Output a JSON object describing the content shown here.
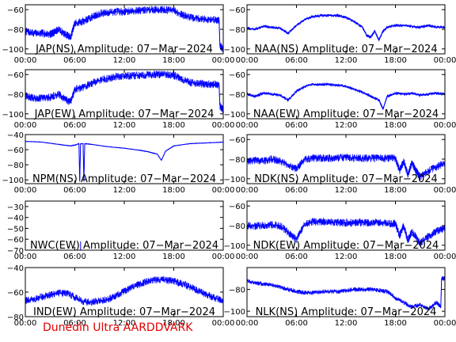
{
  "credit": "Dunedin Ultra AARDDVARK",
  "colors": {
    "series": "#0000ff",
    "axis": "#000000",
    "credit": "#e00000"
  },
  "chart_data": [
    {
      "type": "line",
      "title": "JAP(NS) Amplitude: 07−Mar−2024",
      "xticks": [
        "00:00",
        "06:00",
        "12:00",
        "18:00",
        "00:00"
      ],
      "xlim": [
        0,
        24
      ],
      "ylim": [
        -105,
        -55
      ],
      "yticks": [
        -100,
        -80,
        -60
      ],
      "band": 4,
      "series": [
        {
          "x": [
            0,
            1,
            2,
            3,
            3.5,
            4,
            5,
            5.5,
            6,
            7,
            8,
            9,
            10,
            11,
            12,
            13,
            14,
            15,
            16,
            17,
            18,
            19,
            20,
            21,
            22,
            23,
            23.5,
            23.6,
            24
          ],
          "y": [
            -82,
            -84,
            -84,
            -85,
            -83,
            -80,
            -86,
            -88,
            -74,
            -72,
            -68,
            -64,
            -63,
            -62,
            -62,
            -61,
            -61,
            -60,
            -60,
            -60,
            -61,
            -65,
            -68,
            -69,
            -70,
            -70,
            -71,
            -97,
            -100
          ]
        }
      ]
    },
    {
      "type": "line",
      "title": "NAA(NS) Amplitude: 07−Mar−2024",
      "xticks": [
        "00:00",
        "06:00",
        "12:00",
        "18:00",
        "00:00"
      ],
      "xlim": [
        0,
        24
      ],
      "ylim": [
        -105,
        -55
      ],
      "yticks": [
        -100,
        -80,
        -60
      ],
      "band": 1.5,
      "series": [
        {
          "x": [
            0,
            1,
            2,
            3,
            4,
            5,
            6,
            7,
            8,
            9,
            10,
            11,
            12,
            13,
            14,
            14.5,
            15,
            15.5,
            16,
            16.5,
            17,
            18,
            19,
            20,
            21,
            22,
            23,
            24
          ],
          "y": [
            -79,
            -80,
            -77,
            -78,
            -79,
            -84,
            -76,
            -70,
            -67,
            -66,
            -66,
            -66,
            -68,
            -72,
            -78,
            -86,
            -88,
            -82,
            -91,
            -82,
            -78,
            -76,
            -76,
            -77,
            -78,
            -76,
            -78,
            -78
          ]
        }
      ]
    },
    {
      "type": "line",
      "title": "JAP(EW) Amplitude: 07−Mar−2024",
      "xticks": [
        "00:00",
        "06:00",
        "12:00",
        "18:00",
        "00:00"
      ],
      "xlim": [
        0,
        24
      ],
      "ylim": [
        -105,
        -55
      ],
      "yticks": [
        -100,
        -80,
        -60
      ],
      "band": 4,
      "series": [
        {
          "x": [
            0,
            1,
            2,
            3,
            4,
            5,
            5.5,
            6,
            7,
            8,
            9,
            10,
            11,
            12,
            13,
            14,
            15,
            16,
            17,
            18,
            19,
            20,
            21,
            22,
            23,
            23.5,
            23.6,
            24
          ],
          "y": [
            -82,
            -84,
            -84,
            -83,
            -80,
            -86,
            -88,
            -75,
            -73,
            -69,
            -66,
            -64,
            -62,
            -62,
            -61,
            -61,
            -60,
            -60,
            -60,
            -61,
            -65,
            -68,
            -69,
            -70,
            -70,
            -71,
            -92,
            -96
          ]
        }
      ]
    },
    {
      "type": "line",
      "title": "NAA(EW) Amplitude: 07−Mar−2024",
      "xticks": [
        "00:00",
        "06:00",
        "12:00",
        "18:00",
        "00:00"
      ],
      "xlim": [
        0,
        24
      ],
      "ylim": [
        -105,
        -55
      ],
      "yticks": [
        -100,
        -80,
        -60
      ],
      "band": 1.5,
      "series": [
        {
          "x": [
            0,
            1,
            2,
            3,
            4,
            5,
            6,
            7,
            8,
            9,
            10,
            11,
            12,
            13,
            14,
            15,
            16,
            16.5,
            17,
            18,
            19,
            20,
            21,
            22,
            23,
            24
          ],
          "y": [
            -80,
            -82,
            -79,
            -80,
            -81,
            -86,
            -77,
            -72,
            -70,
            -70,
            -70,
            -71,
            -72,
            -75,
            -78,
            -82,
            -86,
            -95,
            -82,
            -79,
            -80,
            -79,
            -81,
            -80,
            -79,
            -80
          ]
        }
      ]
    },
    {
      "type": "line",
      "title": "NPM(NS) Amplitude: 07−Mar−2024",
      "xticks": [
        "00:00",
        "06:00",
        "12:00",
        "18:00",
        "00:00"
      ],
      "xlim": [
        0,
        24
      ],
      "ylim": [
        -105,
        -40
      ],
      "yticks": [
        -100,
        -80,
        -60,
        -40
      ],
      "band": 0.5,
      "series": [
        {
          "x": [
            0,
            2,
            4,
            5.5,
            6,
            6.5,
            6.6,
            6.7,
            7,
            7.1,
            7.2,
            8,
            10,
            12,
            14,
            15,
            16,
            16.5,
            17,
            18,
            20,
            22,
            24
          ],
          "y": [
            -49,
            -50,
            -53,
            -55,
            -54,
            -52,
            -102,
            -52,
            -52,
            -102,
            -52,
            -53,
            -56,
            -58,
            -61,
            -63,
            -66,
            -74,
            -62,
            -55,
            -52,
            -51,
            -50
          ]
        }
      ]
    },
    {
      "type": "line",
      "title": "NDK(NS) Amplitude: 07−Mar−2024",
      "xticks": [
        "00:00",
        "06:00",
        "12:00",
        "18:00",
        "00:00"
      ],
      "xlim": [
        0,
        24
      ],
      "ylim": [
        -105,
        -55
      ],
      "yticks": [
        -100,
        -80,
        -60
      ],
      "band": 4,
      "series": [
        {
          "x": [
            0,
            1,
            2,
            3,
            4,
            5,
            6,
            7,
            8,
            9,
            10,
            11,
            12,
            13,
            14,
            15,
            16,
            17,
            18,
            18.5,
            19,
            19.5,
            20,
            20.5,
            21,
            22,
            23,
            24
          ],
          "y": [
            -82,
            -81,
            -82,
            -80,
            -82,
            -86,
            -90,
            -80,
            -79,
            -79,
            -79,
            -79,
            -78,
            -79,
            -79,
            -79,
            -79,
            -79,
            -79,
            -92,
            -82,
            -96,
            -84,
            -92,
            -98,
            -92,
            -88,
            -84
          ]
        }
      ]
    },
    {
      "type": "line",
      "title": "NWC(EW) Amplitude: 07−Mar−2024",
      "xticks": [
        "00:00",
        "06:00",
        "12:00",
        "18:00",
        "00:00"
      ],
      "xlim": [
        0,
        24
      ],
      "ylim": [
        -70,
        -25
      ],
      "yticks": [
        -70,
        -60,
        -50,
        -40,
        -30
      ],
      "band": 0,
      "series": [
        {
          "x": [
            6.7,
            6.7
          ],
          "y": [
            -70,
            -62
          ]
        }
      ]
    },
    {
      "type": "line",
      "title": "NDK(EW) Amplitude: 07−Mar−2024",
      "xticks": [
        "00:00",
        "06:00",
        "12:00",
        "18:00",
        "00:00"
      ],
      "xlim": [
        0,
        24
      ],
      "ylim": [
        -105,
        -55
      ],
      "yticks": [
        -100,
        -80,
        -60
      ],
      "band": 4,
      "series": [
        {
          "x": [
            0,
            1,
            2,
            3,
            4,
            5,
            6,
            7,
            8,
            9,
            10,
            11,
            12,
            13,
            14,
            15,
            16,
            17,
            18,
            18.5,
            19,
            19.5,
            20,
            21,
            22,
            23,
            24
          ],
          "y": [
            -80,
            -80,
            -80,
            -79,
            -80,
            -87,
            -94,
            -78,
            -76,
            -76,
            -76,
            -77,
            -77,
            -77,
            -77,
            -77,
            -77,
            -78,
            -78,
            -90,
            -80,
            -95,
            -86,
            -98,
            -91,
            -86,
            -82
          ]
        }
      ]
    },
    {
      "type": "line",
      "title": "IND(EW) Amplitude: 07−Mar−2024",
      "xticks": [
        "00:00",
        "06:00",
        "12:00",
        "18:00",
        "00:00"
      ],
      "xlim": [
        0,
        24
      ],
      "ylim": [
        -80,
        -40
      ],
      "yticks": [
        -80,
        -60,
        -40
      ],
      "band": 3,
      "series": [
        {
          "x": [
            0,
            1,
            2,
            3,
            4,
            5,
            6,
            7,
            8,
            9,
            10,
            11,
            12,
            13,
            14,
            15,
            16,
            17,
            18,
            19,
            20,
            21,
            22,
            23,
            24
          ],
          "y": [
            -67,
            -66,
            -64,
            -62,
            -61,
            -61,
            -64,
            -68,
            -68,
            -67,
            -66,
            -63,
            -59,
            -56,
            -53,
            -51,
            -50,
            -50,
            -51,
            -53,
            -56,
            -59,
            -62,
            -65,
            -67
          ]
        }
      ]
    },
    {
      "type": "line",
      "title": "NLK(NS) Amplitude: 07−Mar−2024",
      "xticks": [
        "00:00",
        "06:00",
        "12:00",
        "18:00",
        "00:00"
      ],
      "xlim": [
        0,
        24
      ],
      "ylim": [
        -105,
        -60
      ],
      "yticks": [
        -100,
        -80
      ],
      "band": 2,
      "series": [
        {
          "x": [
            0,
            1,
            2,
            3,
            4,
            5,
            6,
            7,
            8,
            9,
            10,
            11,
            12,
            13,
            14,
            15,
            16,
            17,
            18,
            19,
            20,
            21,
            22,
            23,
            23.5,
            23.6,
            24
          ],
          "y": [
            -72,
            -74,
            -75,
            -76,
            -78,
            -80,
            -82,
            -83,
            -83,
            -82,
            -82,
            -82,
            -81,
            -80,
            -80,
            -80,
            -81,
            -82,
            -88,
            -92,
            -96,
            -94,
            -98,
            -92,
            -96,
            -70,
            -70
          ]
        }
      ]
    }
  ]
}
